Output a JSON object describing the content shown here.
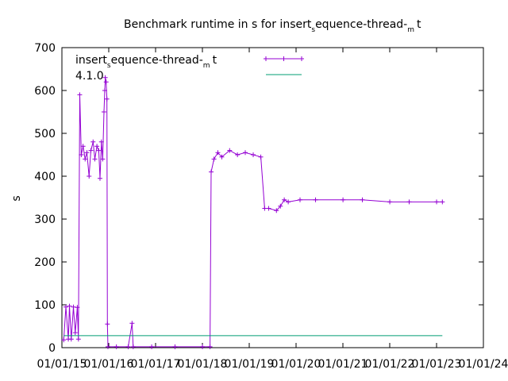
{
  "chart_data": {
    "type": "line",
    "title": {
      "prefix": "Benchmark runtime in s for insert",
      "sub1": "s",
      "mid": "equence-thread-",
      "sub2": "m",
      "suffix": "t"
    },
    "xlabel": "",
    "ylabel": "s",
    "ylim": [
      0,
      700
    ],
    "yticks": [
      0,
      100,
      200,
      300,
      400,
      500,
      600,
      700
    ],
    "xlim": [
      "2015-01-01",
      "2024-01-01"
    ],
    "xticks": [
      "01/01/15",
      "01/01/16",
      "01/01/17",
      "01/01/18",
      "01/01/19",
      "01/01/20",
      "01/01/21",
      "01/01/22",
      "01/01/23",
      "01/01/24"
    ],
    "legend_placement": "top-left",
    "series": [
      {
        "name": {
          "prefix": "insert",
          "sub1": "s",
          "mid": "equence-thread-",
          "sub2": "m",
          "suffix": "t"
        },
        "color": "#9400d3",
        "marker": "plus",
        "points": [
          [
            "2015-01-15",
            18
          ],
          [
            "2015-02-01",
            95
          ],
          [
            "2015-02-20",
            20
          ],
          [
            "2015-03-01",
            97
          ],
          [
            "2015-03-15",
            20
          ],
          [
            "2015-04-01",
            95
          ],
          [
            "2015-04-15",
            35
          ],
          [
            "2015-05-01",
            94
          ],
          [
            "2015-05-10",
            20
          ],
          [
            "2015-05-20",
            590
          ],
          [
            "2015-06-01",
            450
          ],
          [
            "2015-06-15",
            470
          ],
          [
            "2015-07-01",
            440
          ],
          [
            "2015-07-15",
            455
          ],
          [
            "2015-08-01",
            400
          ],
          [
            "2015-08-15",
            460
          ],
          [
            "2015-09-01",
            480
          ],
          [
            "2015-09-15",
            440
          ],
          [
            "2015-10-01",
            470
          ],
          [
            "2015-10-15",
            460
          ],
          [
            "2015-10-25",
            395
          ],
          [
            "2015-11-05",
            480
          ],
          [
            "2015-11-15",
            440
          ],
          [
            "2015-11-25",
            550
          ],
          [
            "2015-12-01",
            600
          ],
          [
            "2015-12-05",
            630
          ],
          [
            "2015-12-12",
            620
          ],
          [
            "2015-12-18",
            580
          ],
          [
            "2015-12-22",
            55
          ],
          [
            "2015-12-26",
            2
          ],
          [
            "2016-03-01",
            2
          ],
          [
            "2016-06-01",
            2
          ],
          [
            "2016-07-01",
            57
          ],
          [
            "2016-07-10",
            2
          ],
          [
            "2016-12-01",
            2
          ],
          [
            "2017-06-01",
            2
          ],
          [
            "2018-01-01",
            2
          ],
          [
            "2018-03-01",
            2
          ],
          [
            "2018-03-10",
            410
          ],
          [
            "2018-04-01",
            440
          ],
          [
            "2018-05-01",
            455
          ],
          [
            "2018-06-01",
            445
          ],
          [
            "2018-08-01",
            460
          ],
          [
            "2018-10-01",
            450
          ],
          [
            "2018-12-01",
            455
          ],
          [
            "2019-02-01",
            450
          ],
          [
            "2019-04-01",
            445
          ],
          [
            "2019-05-01",
            325
          ],
          [
            "2019-06-01",
            325
          ],
          [
            "2019-08-01",
            320
          ],
          [
            "2019-09-01",
            330
          ],
          [
            "2019-10-01",
            345
          ],
          [
            "2019-11-01",
            340
          ],
          [
            "2020-02-01",
            345
          ],
          [
            "2020-06-01",
            345
          ],
          [
            "2021-01-01",
            345
          ],
          [
            "2021-06-01",
            345
          ],
          [
            "2022-01-01",
            340
          ],
          [
            "2022-06-01",
            340
          ],
          [
            "2023-01-01",
            340
          ],
          [
            "2023-02-15",
            340
          ]
        ]
      },
      {
        "name": "4.1.0",
        "color": "#009e73",
        "marker": "none",
        "points": [
          [
            "2015-01-15",
            28
          ],
          [
            "2023-02-15",
            28
          ]
        ]
      }
    ]
  }
}
